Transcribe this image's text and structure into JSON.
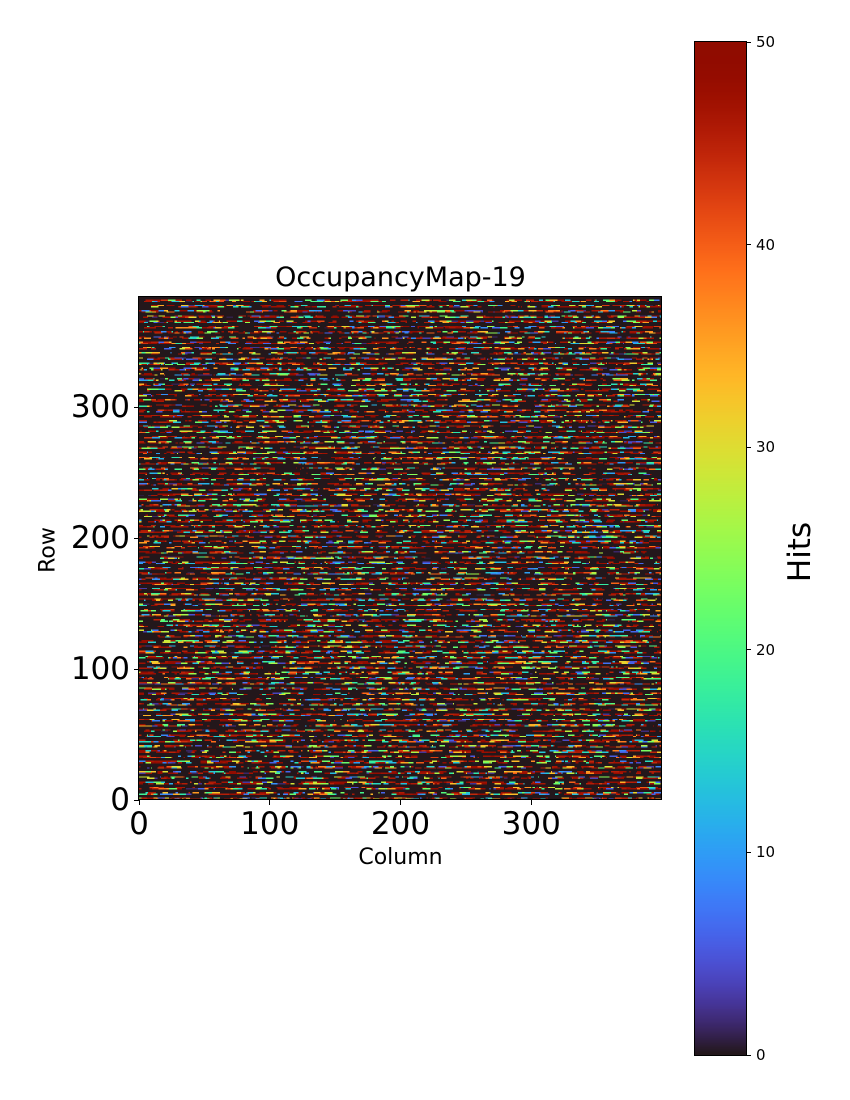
{
  "chart_data": {
    "type": "heatmap",
    "title": "OccupancyMap-19",
    "xlabel": "Column",
    "ylabel": "Row",
    "xlim": [
      0,
      400
    ],
    "ylim": [
      0,
      384
    ],
    "xticks": [
      "0",
      "100",
      "200",
      "300"
    ],
    "yticks": [
      "0",
      "100",
      "200",
      "300"
    ],
    "n_cols": 400,
    "n_rows": 384,
    "pattern": "sparse horizontal bands of hits roughly every 4 rows; remaining cells 0",
    "seed": 19,
    "colormap": "turbo",
    "colorbar": {
      "label": "Hits",
      "range": [
        0,
        50
      ],
      "ticks": [
        "0",
        "10",
        "20",
        "30",
        "40",
        "50"
      ]
    }
  }
}
